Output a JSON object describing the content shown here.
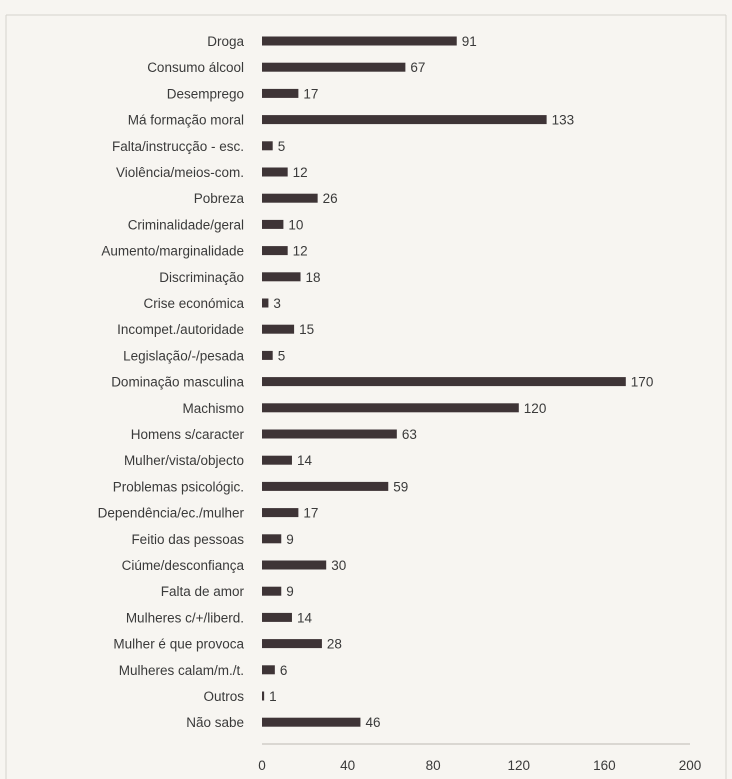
{
  "chart_data": {
    "type": "bar",
    "orientation": "horizontal",
    "categories": [
      "Droga",
      "Consumo álcool",
      "Desemprego",
      "Má formação moral",
      "Falta/instrucção - esc.",
      "Violência/meios-com.",
      "Pobreza",
      "Criminalidade/geral",
      "Aumento/marginalidade",
      "Discriminação",
      "Crise económica",
      "Incompet./autoridade",
      "Legislação/-/pesada",
      "Dominação masculina",
      "Machismo",
      "Homens s/caracter",
      "Mulher/vista/objecto",
      "Problemas psicológic.",
      "Dependência/ec./mulher",
      "Feitio das pessoas",
      "Ciúme/desconfiança",
      "Falta de amor",
      "Mulheres c/+/liberd.",
      "Mulher é que provoca",
      "Mulheres calam/m./t.",
      "Outros",
      "Não sabe"
    ],
    "values": [
      91,
      67,
      17,
      133,
      5,
      12,
      26,
      10,
      12,
      18,
      3,
      15,
      5,
      170,
      120,
      63,
      14,
      59,
      17,
      9,
      30,
      9,
      14,
      28,
      6,
      1,
      46
    ],
    "x_ticks": [
      0,
      40,
      80,
      120,
      160,
      200
    ],
    "xlim": [
      0,
      200
    ],
    "grid": false,
    "legend": "none",
    "bar_color": "#3e3436",
    "title": "",
    "xlabel": "",
    "ylabel": ""
  }
}
